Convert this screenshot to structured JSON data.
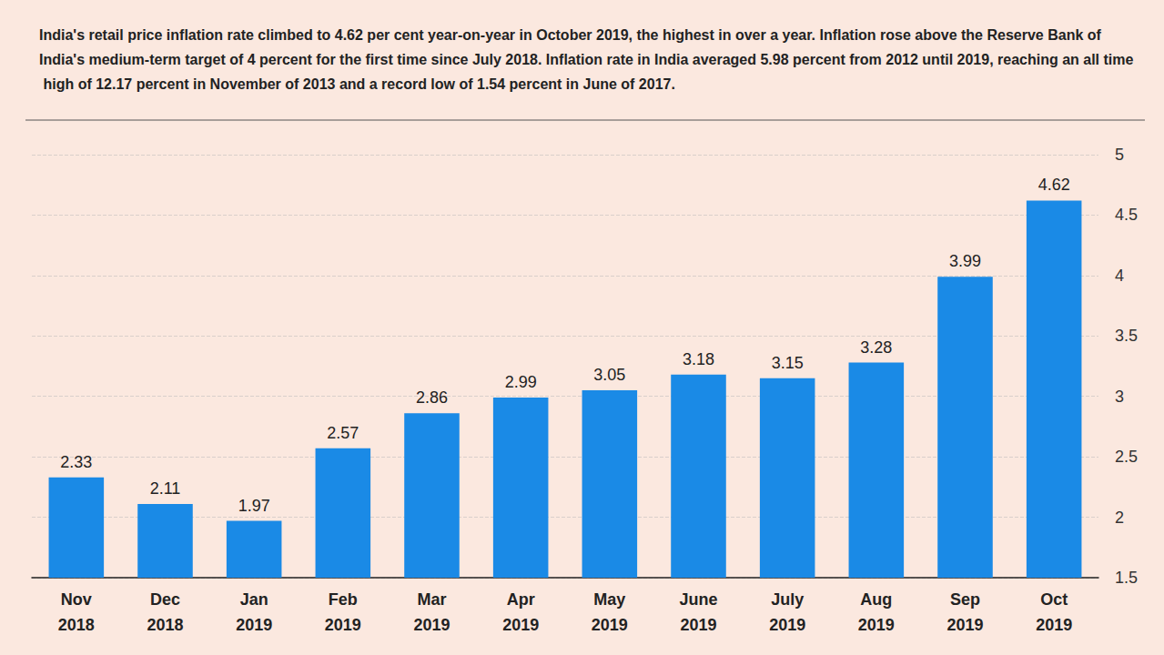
{
  "chart_data": {
    "type": "bar",
    "subtitle": "India's retail price inflation rate climbed to 4.62 per cent year-on-year in October 2019, the highest in over a year. Inflation rose above the Reserve Bank of India's medium-term target of 4 percent for the first time since July 2018. Inflation rate in India averaged 5.98 percent from 2012 until 2019, reaching an all time high of 12.17 percent in November of 2013 and a record low of 1.54 percent in June of 2017.",
    "categories": [
      "Nov 2018",
      "Dec 2018",
      "Jan 2019",
      "Feb 2019",
      "Mar 2019",
      "Apr 2019",
      "May 2019",
      "June 2019",
      "July 2019",
      "Aug 2019",
      "Sep 2019",
      "Oct 2019"
    ],
    "values": [
      2.33,
      2.11,
      1.97,
      2.57,
      2.86,
      2.99,
      3.05,
      3.18,
      3.15,
      3.28,
      3.99,
      4.62
    ],
    "color": "#1a8ae6",
    "ylim": [
      1.5,
      5
    ],
    "yticks": [
      1.5,
      2,
      2.5,
      3,
      3.5,
      4,
      4.5,
      5
    ],
    "grid": true,
    "data_labels": true
  }
}
